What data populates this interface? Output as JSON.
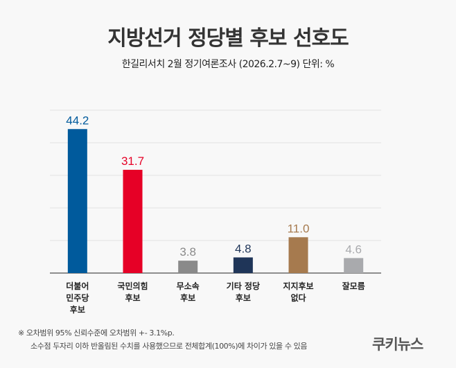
{
  "chart_data": {
    "type": "bar",
    "title": "지방선거 정당별 후보 선호도",
    "subtitle": "한길리서치 2월 정기여론조사 (2026.2.7~9) 단위: %",
    "categories": [
      [
        "더불어",
        "민주당",
        "후보"
      ],
      [
        "국민의힘",
        "후보"
      ],
      [
        "무소속",
        "후보"
      ],
      [
        "기타 정당",
        "후보"
      ],
      [
        "지지후보",
        "없다"
      ],
      [
        "잘모름"
      ]
    ],
    "values": [
      44.2,
      31.7,
      3.8,
      4.8,
      11.0,
      4.6
    ],
    "labels": [
      "44.2",
      "31.7",
      "3.8",
      "4.8",
      "11.0",
      "4.6"
    ],
    "colors": [
      "#005a9c",
      "#e60026",
      "#8a8a8a",
      "#1f3558",
      "#a67a4e",
      "#a9aaad"
    ],
    "label_colors": [
      "#005a9c",
      "#e60026",
      "#8a8a8a",
      "#1f3558",
      "#a67a4e",
      "#a9aaad"
    ],
    "ylim": [
      0,
      50
    ],
    "gridlines": [
      10,
      20,
      30,
      40,
      50
    ],
    "grid": true,
    "xlabel": "",
    "ylabel": ""
  },
  "notes": {
    "line1": "※ 오차범위 95% 신뢰수준에 오차범위 +- 3.1%p.",
    "line2": "소수점 두자리 이하 반올림된 수치를 사용했으므로 전체합계(100%)에 차이가 있을 수 있음"
  },
  "logo": "쿠키뉴스"
}
